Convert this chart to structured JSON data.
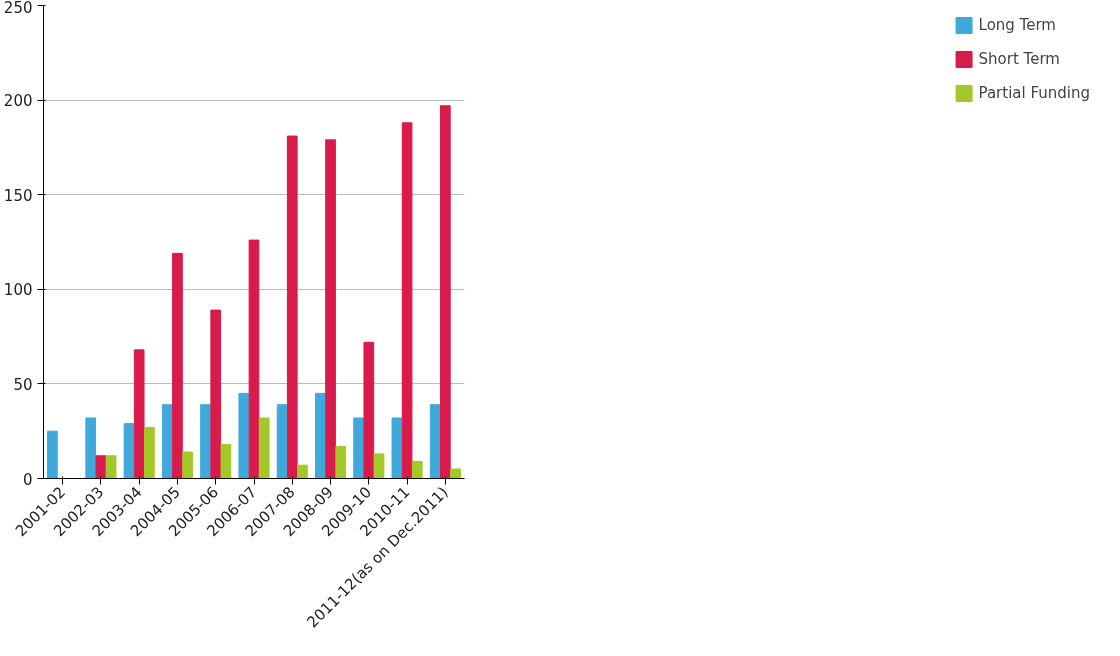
{
  "chart_data": {
    "type": "bar",
    "categories": [
      "2001-02",
      "2002-03",
      "2003-04",
      "2004-05",
      "2005-06",
      "2006-07",
      "2007-08",
      "2008-09",
      "2009-10",
      "2010-11",
      "2011-12(as on Dec.2011)"
    ],
    "series": [
      {
        "name": "Long Term",
        "color": "#3fa9dc",
        "values": [
          25,
          32,
          29,
          39,
          39,
          45,
          39,
          45,
          32,
          32,
          39
        ]
      },
      {
        "name": "Short Term",
        "color": "#d81b4a",
        "values": [
          null,
          12,
          68,
          119,
          89,
          126,
          181,
          179,
          72,
          188,
          197
        ]
      },
      {
        "name": "Partial Funding",
        "color": "#a3c928",
        "values": [
          null,
          12,
          27,
          14,
          18,
          32,
          7,
          17,
          13,
          9,
          5
        ]
      }
    ],
    "ylim": [
      0,
      250
    ],
    "yticks": [
      0,
      50,
      100,
      150,
      200,
      250
    ],
    "grid": "y",
    "legend": "right"
  }
}
